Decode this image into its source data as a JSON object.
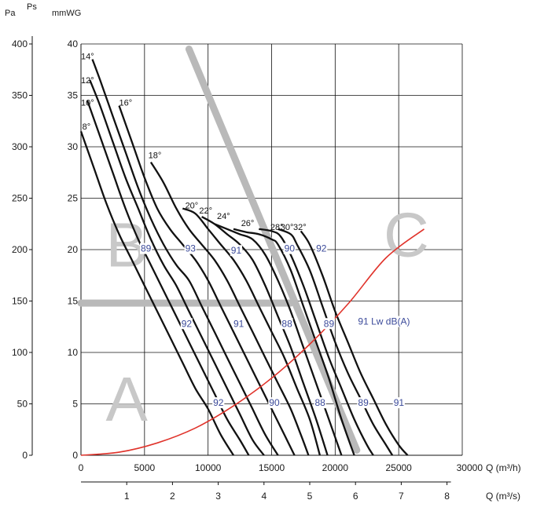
{
  "chart_data": {
    "type": "line",
    "axes": {
      "x_primary": {
        "label": "Q (m³/h)",
        "range": [
          0,
          30000
        ],
        "ticks": [
          0,
          5000,
          10000,
          15000,
          20000,
          25000,
          30000
        ]
      },
      "x_secondary": {
        "label": "Q (m³/s)",
        "range": [
          0,
          8.333
        ],
        "ticks": [
          1,
          2,
          3,
          4,
          5,
          6,
          7,
          8
        ]
      },
      "y_primary": {
        "label": "mmWG",
        "range": [
          0,
          40
        ],
        "ticks": [
          0,
          5,
          10,
          15,
          20,
          25,
          30,
          35,
          40
        ]
      },
      "y_secondary": {
        "label": "Pa",
        "label2": "Ps",
        "range": [
          0,
          400
        ],
        "ticks": [
          0,
          50,
          100,
          150,
          200,
          250,
          300,
          350,
          400
        ]
      }
    },
    "grid": true,
    "series": [
      {
        "name": "8°",
        "x": [
          0,
          1000,
          2000,
          3000,
          4000,
          5000,
          6000,
          7000,
          8000,
          9000,
          10000,
          11000,
          12000
        ],
        "y": [
          31.5,
          28,
          24.5,
          21.5,
          19,
          16.5,
          14,
          11.5,
          9,
          6.5,
          4.5,
          2,
          0
        ]
      },
      {
        "name": "10°",
        "x": [
          500,
          1500,
          2500,
          3500,
          4500,
          5500,
          6500,
          7500,
          8500,
          9500,
          10500,
          11500,
          12500,
          13200
        ],
        "y": [
          34.5,
          31,
          27.5,
          24,
          21,
          18.5,
          16,
          13.5,
          11,
          8.5,
          6,
          3.5,
          1.5,
          0
        ]
      },
      {
        "name": "12°",
        "x": [
          700,
          1500,
          2500,
          3500,
          4500,
          5500,
          6500,
          7500,
          8500,
          9500,
          10500,
          11500,
          12500,
          13500,
          14400
        ],
        "y": [
          36.5,
          34,
          30.5,
          27,
          24,
          21,
          18.5,
          16.5,
          14,
          11.5,
          9,
          6.5,
          4,
          1.5,
          0
        ]
      },
      {
        "name": "14°",
        "x": [
          900,
          1500,
          2500,
          3500,
          4500,
          5500,
          6500,
          7500,
          8500,
          9500,
          10500,
          11500,
          12500,
          13500,
          14500,
          15500
        ],
        "y": [
          38.5,
          36.5,
          33,
          29.5,
          26,
          23,
          20.5,
          18.5,
          17,
          14.5,
          12,
          9.5,
          7,
          4.5,
          2,
          0
        ]
      },
      {
        "name": "16°",
        "x": [
          3000,
          4000,
          5000,
          6000,
          7000,
          8000,
          9000,
          10000,
          11000,
          12000,
          13000,
          14000,
          15000,
          16000,
          16800
        ],
        "y": [
          34,
          30.5,
          27,
          24,
          22,
          20.5,
          19,
          17,
          14.5,
          12,
          9.5,
          7,
          4.5,
          2,
          0
        ]
      },
      {
        "name": "18°",
        "x": [
          5500,
          6500,
          7500,
          8500,
          9500,
          10500,
          11500,
          12500,
          13500,
          14500,
          15500,
          16500,
          17300,
          17900
        ],
        "y": [
          28.5,
          26.5,
          24,
          22,
          20.5,
          19,
          17,
          14.5,
          12,
          9.5,
          7,
          4.5,
          2,
          0
        ]
      },
      {
        "name": "20°",
        "x": [
          8000,
          9000,
          10000,
          11000,
          12000,
          13000,
          14000,
          15000,
          16000,
          17000,
          18000,
          18800
        ],
        "y": [
          24,
          23.5,
          22,
          20.5,
          19,
          17,
          14.5,
          12,
          9.5,
          6.5,
          3.5,
          0
        ]
      },
      {
        "name": "22°",
        "x": [
          9500,
          10500,
          11500,
          12500,
          13500,
          14500,
          15500,
          16500,
          17500,
          18500,
          19400
        ],
        "y": [
          23.2,
          22.5,
          21.5,
          20.5,
          19,
          16.5,
          13.5,
          10.5,
          7,
          3.5,
          0
        ]
      },
      {
        "name": "24°",
        "x": [
          10500,
          11500,
          12500,
          13500,
          14500,
          15500,
          16500,
          17500,
          18500,
          19500,
          20500
        ],
        "y": [
          22.5,
          22,
          21.5,
          21,
          19.5,
          17,
          14,
          10.5,
          7,
          3.5,
          0
        ]
      },
      {
        "name": "26°",
        "x": [
          12000,
          13000,
          14000,
          15000,
          15500,
          16500,
          17500,
          18500,
          19500,
          20500,
          21500
        ],
        "y": [
          22,
          21.7,
          21.5,
          21,
          20.5,
          18,
          14.5,
          11,
          7.5,
          3.5,
          0
        ]
      },
      {
        "name": "28°",
        "x": [
          14000,
          15000,
          15700,
          16500,
          17500,
          18500,
          19500,
          20500,
          21500,
          22500,
          23000
        ],
        "y": [
          22,
          21.8,
          21.3,
          19.5,
          16.5,
          13,
          9.5,
          6.5,
          3.5,
          1,
          0
        ]
      },
      {
        "name": "30°",
        "x": [
          15500,
          16500,
          17000,
          18000,
          19000,
          20000,
          21000,
          22000,
          23000,
          24000,
          24500
        ],
        "y": [
          22,
          21.5,
          20.5,
          18,
          14.5,
          11,
          8,
          5.5,
          3,
          1,
          0
        ]
      },
      {
        "name": "32°",
        "x": [
          17300,
          18000,
          19000,
          20000,
          21000,
          22000,
          23000,
          24000,
          25000,
          25700
        ],
        "y": [
          21.8,
          20.5,
          17.5,
          14,
          11,
          8,
          5.5,
          3,
          1,
          0
        ]
      }
    ],
    "angle_labels": [
      {
        "text": "14°",
        "x": 0,
        "y": 38.8
      },
      {
        "text": "12°",
        "x": 0,
        "y": 36.5
      },
      {
        "text": "10°",
        "x": 0,
        "y": 34.3
      },
      {
        "text": "16°",
        "x": 3000,
        "y": 34.3
      },
      {
        "text": "8°",
        "x": 100,
        "y": 32
      },
      {
        "text": "18°",
        "x": 5300,
        "y": 29.2
      },
      {
        "text": "20°",
        "x": 8200,
        "y": 24.3
      },
      {
        "text": "22°",
        "x": 9300,
        "y": 23.8
      },
      {
        "text": "24°",
        "x": 10700,
        "y": 23.3
      },
      {
        "text": "26°",
        "x": 12600,
        "y": 22.6
      },
      {
        "text": "28°",
        "x": 14900,
        "y": 22.2
      },
      {
        "text": "30°",
        "x": 15700,
        "y": 22.2
      },
      {
        "text": "32°",
        "x": 16700,
        "y": 22.2
      }
    ],
    "db_labels": [
      {
        "text": "89",
        "x": 4700,
        "y": 19.8
      },
      {
        "text": "93",
        "x": 8200,
        "y": 19.8
      },
      {
        "text": "91",
        "x": 11800,
        "y": 19.6
      },
      {
        "text": "90",
        "x": 16000,
        "y": 19.8
      },
      {
        "text": "92",
        "x": 18500,
        "y": 19.8
      },
      {
        "text": "92",
        "x": 7900,
        "y": 12.5
      },
      {
        "text": "91",
        "x": 12000,
        "y": 12.5
      },
      {
        "text": "88",
        "x": 15800,
        "y": 12.5
      },
      {
        "text": "89",
        "x": 19100,
        "y": 12.5
      },
      {
        "text": "91 Lw dB(A)",
        "x": 21800,
        "y": 12.7
      },
      {
        "text": "92",
        "x": 10400,
        "y": 4.8
      },
      {
        "text": "90",
        "x": 14800,
        "y": 4.8
      },
      {
        "text": "88",
        "x": 18400,
        "y": 4.8
      },
      {
        "text": "89",
        "x": 21800,
        "y": 4.8
      },
      {
        "text": "91",
        "x": 24600,
        "y": 4.8
      }
    ],
    "system_curve": {
      "color": "#e0332b",
      "x": [
        0,
        3000,
        6000,
        9000,
        12000,
        15000,
        18000,
        21000,
        24000,
        27000
      ],
      "y": [
        0,
        0.3,
        1.2,
        2.65,
        4.8,
        7.5,
        10.8,
        14.7,
        19.2,
        22
      ]
    },
    "zone_boundaries": {
      "color": "#b9b9b9",
      "diagonal": {
        "x": [
          8500,
          21700
        ],
        "y": [
          39.5,
          0.5
        ]
      },
      "horizontal": {
        "x": [
          0,
          16500
        ],
        "y": [
          14.8,
          14.8
        ]
      }
    },
    "zones": [
      {
        "text": "A",
        "x": 3600,
        "y": 5.5
      },
      {
        "text": "B",
        "x": 3600,
        "y": 20.5
      },
      {
        "text": "C",
        "x": 25600,
        "y": 21.5
      }
    ],
    "colors": {
      "curve": "#111111",
      "grid": "#111111",
      "db_label": "#3b4a9a",
      "zone_text": "#c8c8c8"
    }
  }
}
